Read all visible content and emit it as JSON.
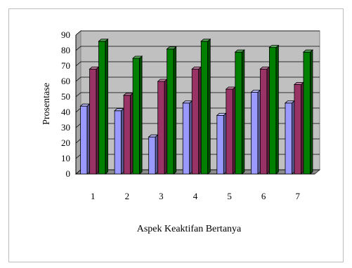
{
  "chart_data": {
    "type": "bar",
    "style": "3d-clustered-column",
    "title": "",
    "xlabel": "Aspek Keaktifan Bertanya",
    "ylabel": "Prosentase",
    "categories": [
      "1",
      "2",
      "3",
      "4",
      "5",
      "6",
      "7"
    ],
    "ylim": [
      0,
      90
    ],
    "yticks": [
      "0",
      "10",
      "20",
      "30",
      "40",
      "50",
      "60",
      "70",
      "80",
      "90"
    ],
    "grid": true,
    "legend": "none",
    "plot_background": "#c0c0c0",
    "series": [
      {
        "color": "#9999ff",
        "values": [
          44,
          41,
          24,
          46,
          38,
          53,
          46
        ]
      },
      {
        "color": "#993366",
        "values": [
          68,
          51,
          60,
          68,
          55,
          68,
          58
        ]
      },
      {
        "color": "#008000",
        "values": [
          86,
          75,
          81,
          86,
          79,
          82,
          79
        ]
      }
    ]
  }
}
